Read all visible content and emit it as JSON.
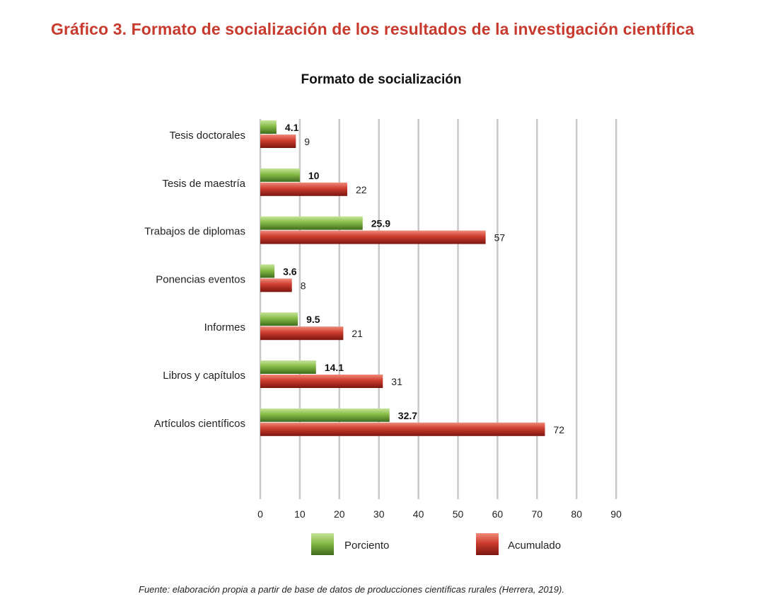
{
  "header": {
    "title": "Gráfico 3. Formato de socialización de los resultados de la investigación científica"
  },
  "footer": {
    "source": "Fuente: elaboración propia a partir de base de datos de producciones científicas rurales (Herrera, 2019)."
  },
  "colors": {
    "title": "#c83a2e",
    "porciento": "#7fb241",
    "acumulado": "#c7362b",
    "grid": "#c8c8c8"
  },
  "chart_data": {
    "type": "bar",
    "orientation": "horizontal",
    "title": "Formato de socialización",
    "xlabel": "",
    "ylabel": "",
    "categories": [
      "Tesis doctorales",
      "Tesis de maestría",
      "Trabajos de diplomas",
      "Ponencias eventos",
      "Informes",
      "Libros y capítulos",
      "Artículos científicos"
    ],
    "series": [
      {
        "name": "Porciento",
        "values": [
          4.1,
          10,
          25.9,
          3.6,
          9.5,
          14.1,
          32.7
        ],
        "labels": [
          "4.1",
          "10",
          "25.9",
          "3.6",
          "9.5",
          "14.1",
          "32.7"
        ]
      },
      {
        "name": "Acumulado",
        "values": [
          9,
          22,
          57,
          8,
          21,
          31,
          72
        ],
        "labels": [
          "9",
          "22",
          "57",
          "8",
          "21",
          "31",
          "72"
        ]
      }
    ],
    "xlim": [
      0,
      90
    ],
    "xticks": [
      0,
      10,
      20,
      30,
      40,
      50,
      60,
      70,
      80,
      90
    ],
    "grid": true,
    "legend": "bottom"
  }
}
